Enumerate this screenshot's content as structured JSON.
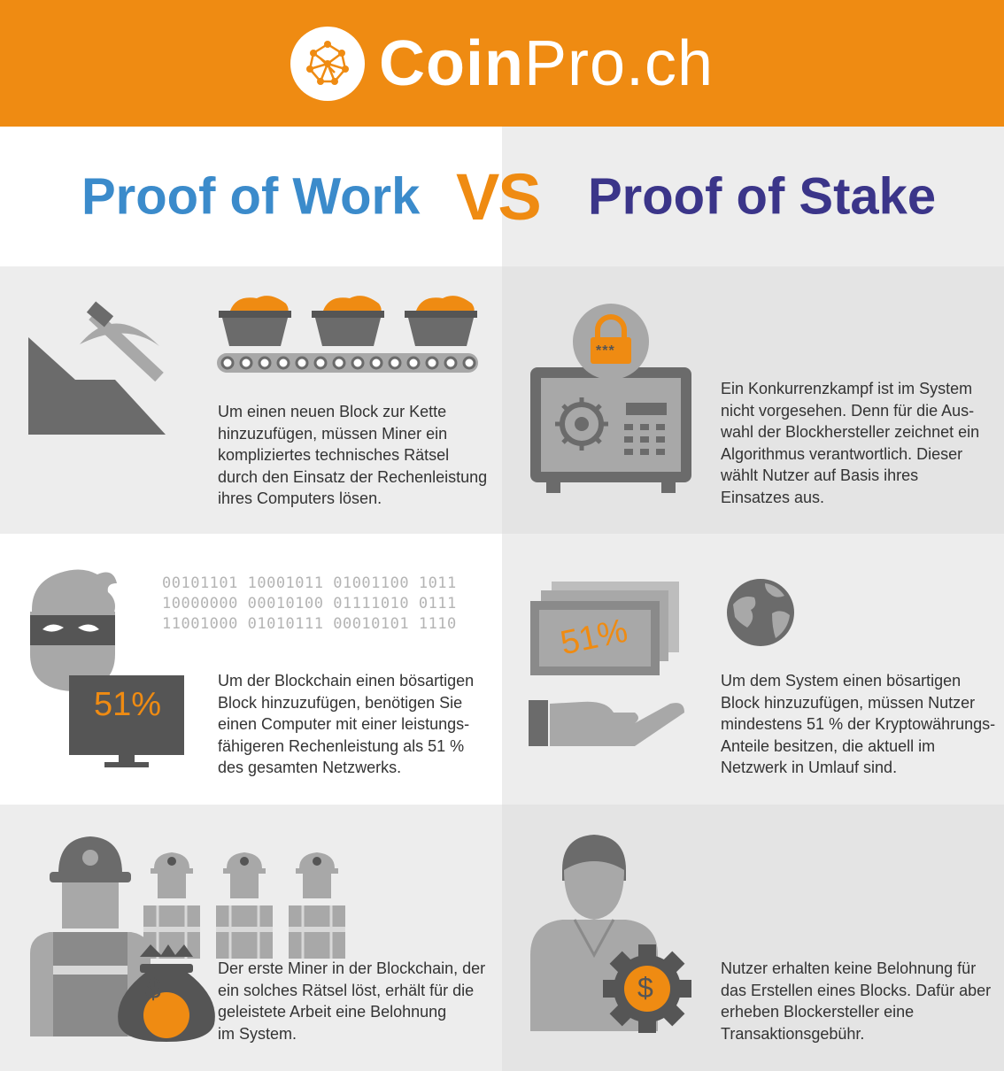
{
  "header": {
    "brand_bold": "Coin",
    "brand_regular": "Pro.ch"
  },
  "titles": {
    "left": "Proof of Work",
    "vs": "VS",
    "right": "Proof of Stake"
  },
  "colors": {
    "orange": "#ef8b12",
    "pow_blue": "#3b8bcb",
    "pos_indigo": "#3b3589",
    "icon_dark": "#6b6b6b",
    "icon_light": "#a8a8a8"
  },
  "rows": [
    {
      "left_text": "Um einen neuen Block zur Kette\nhinzuzufügen, müssen Miner ein\nkompliziertes technisches Rätsel\ndurch den Einsatz der Rechenleistung\nihres Computers lösen.",
      "right_text": "Ein Konkurrenzkampf ist im System\nnicht vorgesehen. Denn für die Aus-\nwahl der Blockhersteller zeichnet ein\nAlgorithmus verantwortlich. Dieser\nwählt Nutzer auf Basis ihres\nEinsatzes aus.",
      "lock_code": "***"
    },
    {
      "left_text": "Um der Blockchain einen bösartigen\nBlock hinzuzufügen, benötigen Sie\neinen Computer mit einer leistungs-\nfähigeren Rechenleistung als 51 %\ndes gesamten Netzwerks.",
      "right_text": "Um dem System einen bösartigen\nBlock hinzuzufügen, müssen Nutzer\nmindestens 51 % der Kryptowährungs-\nAnteile besitzen, die aktuell im\nNetzwerk in Umlauf sind.",
      "binary": "00101101 10001011 01001100 1011\n10000000 00010100 01111010 0111\n11001000 01010111 00010101 1110",
      "monitor_label": "51%",
      "banknote_label": "51%"
    },
    {
      "left_text": "Der erste Miner in der Blockchain, der\nein solches Rätsel löst, erhält für die\ngeleistete Arbeit eine Belohnung\nim System.",
      "right_text": "Nutzer erhalten keine Belohnung für\ndas Erstellen eines Blocks. Dafür aber\nerheben Blockersteller eine\nTransaktionsgebühr.",
      "bag_symbol": "$",
      "gear_symbol": "$"
    }
  ]
}
